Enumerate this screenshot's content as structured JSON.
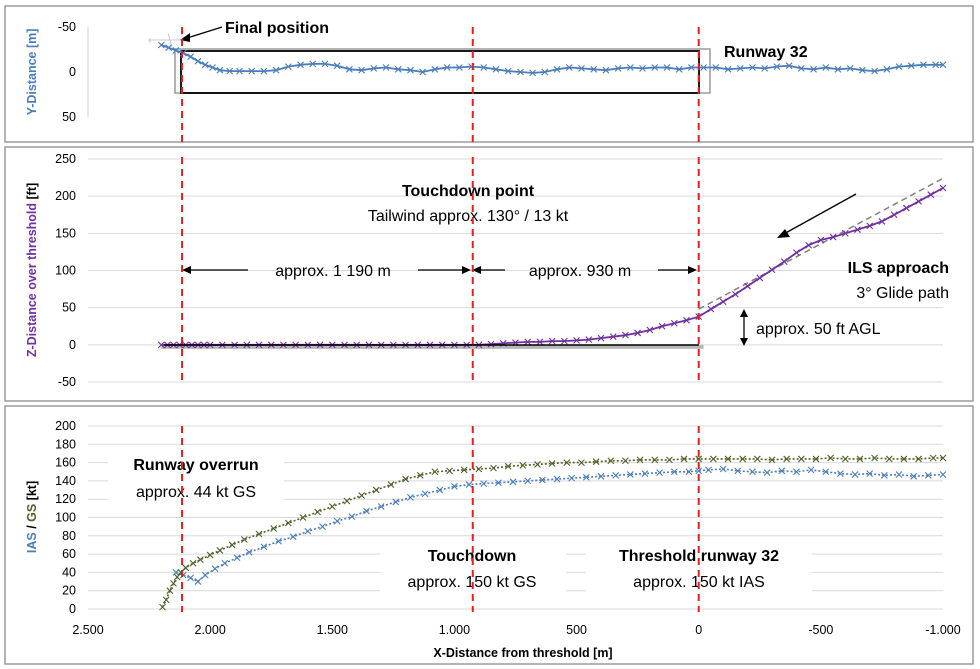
{
  "figure": {
    "xlabel": "X-Distance from threshold [m]",
    "xlim": [
      2500,
      -1000
    ],
    "xticks": [
      "2.500",
      "2.000",
      "1.500",
      "1.000",
      "500",
      "0",
      "-500",
      "-1.000"
    ],
    "xtick_values": [
      2500,
      2000,
      1500,
      1000,
      500,
      0,
      -500,
      -1000
    ],
    "reference_lines_x": [
      2115,
      925,
      0
    ],
    "colors": {
      "blue": "#4a7ebb",
      "purple": "#7030a0",
      "green": "#4f6228",
      "red": "#e02020",
      "gray": "#808080"
    }
  },
  "chart_data": [
    {
      "type": "line",
      "ylabel": "Y-Distance [m]",
      "ylim": [
        50,
        -50
      ],
      "yticks": [
        "-50",
        "0",
        "50"
      ],
      "ytick_values": [
        -50,
        0,
        50
      ],
      "series": [
        {
          "name": "",
          "color": "#4a7ebb",
          "x": [
            2200,
            2170,
            2140,
            2110,
            2080,
            2050,
            2020,
            1990,
            1960,
            1920,
            1880,
            1830,
            1780,
            1730,
            1680,
            1630,
            1580,
            1530,
            1480,
            1430,
            1380,
            1330,
            1280,
            1230,
            1180,
            1130,
            1080,
            1030,
            980,
            930,
            880,
            830,
            780,
            730,
            680,
            630,
            580,
            530,
            480,
            430,
            380,
            330,
            280,
            230,
            180,
            130,
            80,
            30,
            -20,
            -70,
            -120,
            -170,
            -220,
            -270,
            -320,
            -370,
            -420,
            -470,
            -520,
            -570,
            -620,
            -670,
            -720,
            -770,
            -820,
            -870,
            -920,
            -970,
            -1000
          ],
          "y": [
            -30,
            -27,
            -24,
            -21,
            -17,
            -12,
            -8,
            -5,
            -2,
            -1,
            -1,
            -1,
            -1,
            -2,
            -6,
            -8,
            -9,
            -9,
            -7,
            -3,
            -2,
            -4,
            -5,
            -3,
            -2,
            0,
            -3,
            -5,
            -5,
            -6,
            -5,
            -3,
            -1,
            0,
            1,
            0,
            -3,
            -5,
            -4,
            -3,
            -2,
            -4,
            -5,
            -4,
            -5,
            -5,
            -3,
            -5,
            -5,
            -5,
            -3,
            -4,
            -5,
            -4,
            -6,
            -7,
            -4,
            -3,
            -5,
            -3,
            -4,
            -2,
            -1,
            -3,
            -6,
            -7,
            -8,
            -8,
            -8
          ]
        }
      ],
      "annotations": {
        "final_position": "Final position",
        "runway_label": "Runway 32"
      }
    },
    {
      "type": "line",
      "ylabel_part1": "Z-Distance over threshold",
      "ylabel_part2": " [ft]",
      "ylim": [
        -50,
        250
      ],
      "yticks": [
        "-50",
        "0",
        "50",
        "100",
        "150",
        "200",
        "250"
      ],
      "ytick_values": [
        -50,
        0,
        50,
        100,
        150,
        200,
        250
      ],
      "series": [
        {
          "name": "",
          "color": "#7030a0",
          "x": [
            2200,
            2175,
            2150,
            2125,
            2100,
            2075,
            2050,
            2025,
            2000,
            1950,
            1900,
            1850,
            1800,
            1750,
            1700,
            1650,
            1600,
            1550,
            1500,
            1450,
            1400,
            1350,
            1300,
            1250,
            1200,
            1150,
            1100,
            1050,
            1000,
            950,
            900,
            850,
            800,
            750,
            700,
            650,
            600,
            550,
            500,
            450,
            400,
            350,
            300,
            250,
            200,
            150,
            100,
            50,
            0,
            -50,
            -100,
            -150,
            -200,
            -250,
            -300,
            -350,
            -400,
            -450,
            -500,
            -550,
            -600,
            -650,
            -700,
            -750,
            -800,
            -850,
            -900,
            -950,
            -1000
          ],
          "y": [
            0,
            0,
            0,
            0,
            0,
            0,
            0,
            0,
            0,
            0,
            0,
            0,
            0,
            0,
            0,
            0,
            0,
            0,
            0,
            0,
            0,
            0,
            0,
            0,
            0,
            0,
            0,
            0,
            0,
            0,
            0,
            1,
            2,
            3,
            4,
            4,
            5,
            5,
            6,
            7,
            9,
            11,
            13,
            16,
            20,
            25,
            29,
            33,
            38,
            48,
            58,
            68,
            79,
            90,
            101,
            112,
            124,
            134,
            141,
            145,
            150,
            155,
            160,
            166,
            175,
            184,
            193,
            202,
            211
          ]
        }
      ],
      "glide_path": {
        "name": "",
        "x": [
          0,
          -1000
        ],
        "y": [
          48,
          224
        ]
      },
      "ground_line": {
        "x": [
          2200,
          0
        ],
        "y": [
          0,
          0
        ]
      },
      "annotations": {
        "touchdown_title": "Touchdown point",
        "tailwind": "Tailwind approx. 130° / 13 kt",
        "dist1": "approx. 1 190 m",
        "dist2": "approx. 930 m",
        "ils_title": "ILS approach",
        "glide": "3° Glide path",
        "agl": "approx. 50 ft AGL"
      }
    },
    {
      "type": "line",
      "ylabel_ias": "IAS",
      "ylabel_sep": " / ",
      "ylabel_gs": "GS",
      "ylabel_unit": " [kt]",
      "ylim": [
        0,
        200
      ],
      "yticks": [
        "0",
        "20",
        "40",
        "60",
        "80",
        "100",
        "120",
        "140",
        "160",
        "180",
        "200"
      ],
      "ytick_values": [
        0,
        20,
        40,
        60,
        80,
        100,
        120,
        140,
        160,
        180,
        200
      ],
      "series": [
        {
          "name": "IAS",
          "color": "#4a7ebb",
          "x": [
            2140,
            2110,
            2080,
            2050,
            2020,
            1980,
            1940,
            1890,
            1840,
            1780,
            1720,
            1660,
            1600,
            1540,
            1480,
            1420,
            1360,
            1300,
            1240,
            1180,
            1120,
            1060,
            1000,
            940,
            880,
            820,
            760,
            700,
            640,
            580,
            520,
            460,
            400,
            340,
            280,
            220,
            160,
            100,
            40,
            0,
            -40,
            -100,
            -160,
            -220,
            -280,
            -340,
            -400,
            -460,
            -520,
            -580,
            -640,
            -700,
            -760,
            -820,
            -880,
            -940,
            -1000
          ],
          "y": [
            40,
            37,
            34,
            30,
            37,
            44,
            50,
            56,
            62,
            68,
            74,
            79,
            85,
            90,
            96,
            101,
            107,
            112,
            117,
            122,
            126,
            130,
            134,
            136,
            137,
            138,
            139,
            140,
            141,
            142,
            143,
            144,
            145,
            146,
            147,
            148,
            149,
            150,
            150,
            151,
            152,
            153,
            151,
            150,
            149,
            151,
            150,
            152,
            150,
            148,
            147,
            148,
            146,
            147,
            145,
            146,
            147
          ]
        },
        {
          "name": "GS",
          "color": "#4f6228",
          "x": [
            2195,
            2180,
            2165,
            2150,
            2135,
            2120,
            2100,
            2070,
            2040,
            2000,
            1960,
            1910,
            1860,
            1800,
            1740,
            1680,
            1620,
            1560,
            1500,
            1440,
            1380,
            1320,
            1260,
            1200,
            1140,
            1080,
            1020,
            960,
            900,
            840,
            780,
            720,
            660,
            600,
            540,
            480,
            420,
            360,
            300,
            240,
            180,
            120,
            60,
            0,
            -60,
            -120,
            -180,
            -240,
            -300,
            -360,
            -420,
            -480,
            -540,
            -600,
            -660,
            -720,
            -780,
            -840,
            -900,
            -960,
            -1000
          ],
          "y": [
            2,
            10,
            20,
            28,
            35,
            40,
            45,
            50,
            54,
            59,
            64,
            70,
            76,
            82,
            88,
            94,
            100,
            106,
            112,
            118,
            124,
            130,
            136,
            142,
            146,
            150,
            151,
            152,
            153,
            154,
            156,
            157,
            158,
            159,
            160,
            160,
            161,
            162,
            162,
            163,
            163,
            163,
            164,
            164,
            164,
            164,
            164,
            164,
            163,
            164,
            164,
            164,
            165,
            164,
            164,
            165,
            164,
            164,
            164,
            165,
            165
          ]
        }
      ],
      "annotations": {
        "overrun_title": "Runway overrun",
        "overrun_sub": "approx. 44 kt GS",
        "td_title": "Touchdown",
        "td_sub": "approx. 150 kt GS",
        "thr_title": "Threshold runway 32",
        "thr_sub": "approx. 150 kt IAS"
      }
    }
  ]
}
